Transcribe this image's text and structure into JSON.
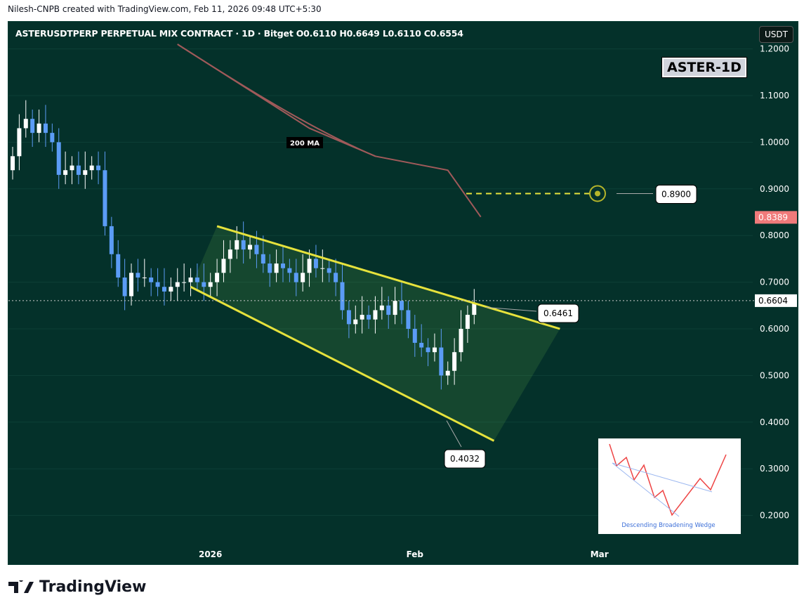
{
  "credit": "Nilesh-CNPB created with TradingView.com, Feb 11, 2026 09:48 UTC+5:30",
  "title": "ASTERUSDTPERP PERPETUAL MIX CONTRACT · 1D · Bitget  O0.6110  H0.6649  L0.6110  C0.6554",
  "currency_button": "USDT",
  "badge": "ASTER-1D",
  "footer_logo": "TradingView",
  "inset_caption": "Descending Broadening Wedge",
  "chart_data": {
    "type": "candlestick",
    "symbol": "ASTERUSDTPERP",
    "interval": "1D",
    "exchange": "Bitget",
    "ohlc_last": {
      "open": 0.611,
      "high": 0.6649,
      "low": 0.611,
      "close": 0.6554
    },
    "ylim": [
      0.12,
      1.21
    ],
    "y_ticks": [
      "1.2000",
      "1.1000",
      "1.0000",
      "0.9000",
      "0.8000",
      "0.7000",
      "0.6000",
      "0.5000",
      "0.4000",
      "0.3000",
      "0.2000"
    ],
    "x_ticks": [
      {
        "label": "2026",
        "day": 30
      },
      {
        "label": "Feb",
        "day": 61
      },
      {
        "label": "Mar",
        "day": 89
      }
    ],
    "start_date": "Dec 2, 2025",
    "closes": [
      0.97,
      1.03,
      1.05,
      1.02,
      1.04,
      1.02,
      1.0,
      0.93,
      0.94,
      0.95,
      0.93,
      0.94,
      0.95,
      0.94,
      0.82,
      0.76,
      0.71,
      0.67,
      0.72,
      0.71,
      0.71,
      0.7,
      0.69,
      0.68,
      0.69,
      0.7,
      0.7,
      0.71,
      0.7,
      0.69,
      0.7,
      0.72,
      0.75,
      0.77,
      0.79,
      0.77,
      0.78,
      0.76,
      0.74,
      0.72,
      0.74,
      0.73,
      0.72,
      0.7,
      0.72,
      0.75,
      0.73,
      0.73,
      0.72,
      0.7,
      0.64,
      0.61,
      0.62,
      0.63,
      0.62,
      0.64,
      0.65,
      0.63,
      0.66,
      0.64,
      0.6,
      0.57,
      0.56,
      0.55,
      0.56,
      0.5,
      0.51,
      0.55,
      0.6,
      0.63,
      0.6554
    ],
    "ma": {
      "label": "200 MA",
      "points": [
        [
          25,
          1.21
        ],
        [
          35,
          1.12
        ],
        [
          45,
          1.03
        ],
        [
          55,
          0.97
        ],
        [
          66,
          0.94
        ],
        [
          71,
          0.84
        ]
      ],
      "color": "#a05a5a"
    },
    "wedge": {
      "upper": [
        [
          31,
          0.82
        ],
        [
          83,
          0.6
        ]
      ],
      "lower": [
        [
          27,
          0.69
        ],
        [
          73,
          0.36
        ]
      ]
    },
    "target": {
      "label": "0.8900",
      "value": 0.89
    },
    "annotations": [
      {
        "label": "0.6461",
        "value": 0.6461,
        "day": 72
      },
      {
        "label": "0.4032",
        "value": 0.4032,
        "day": 66
      }
    ],
    "price_labels": [
      {
        "label": "0.8389",
        "value": 0.8389,
        "color": "#f07a7a"
      },
      {
        "label": "0.6604",
        "value": 0.6604,
        "color": "#ffffff"
      }
    ],
    "colors": {
      "up": "#ffffff",
      "down": "#5b9cf6",
      "wedge": "#e6e23c",
      "bg": "#04312a"
    }
  }
}
